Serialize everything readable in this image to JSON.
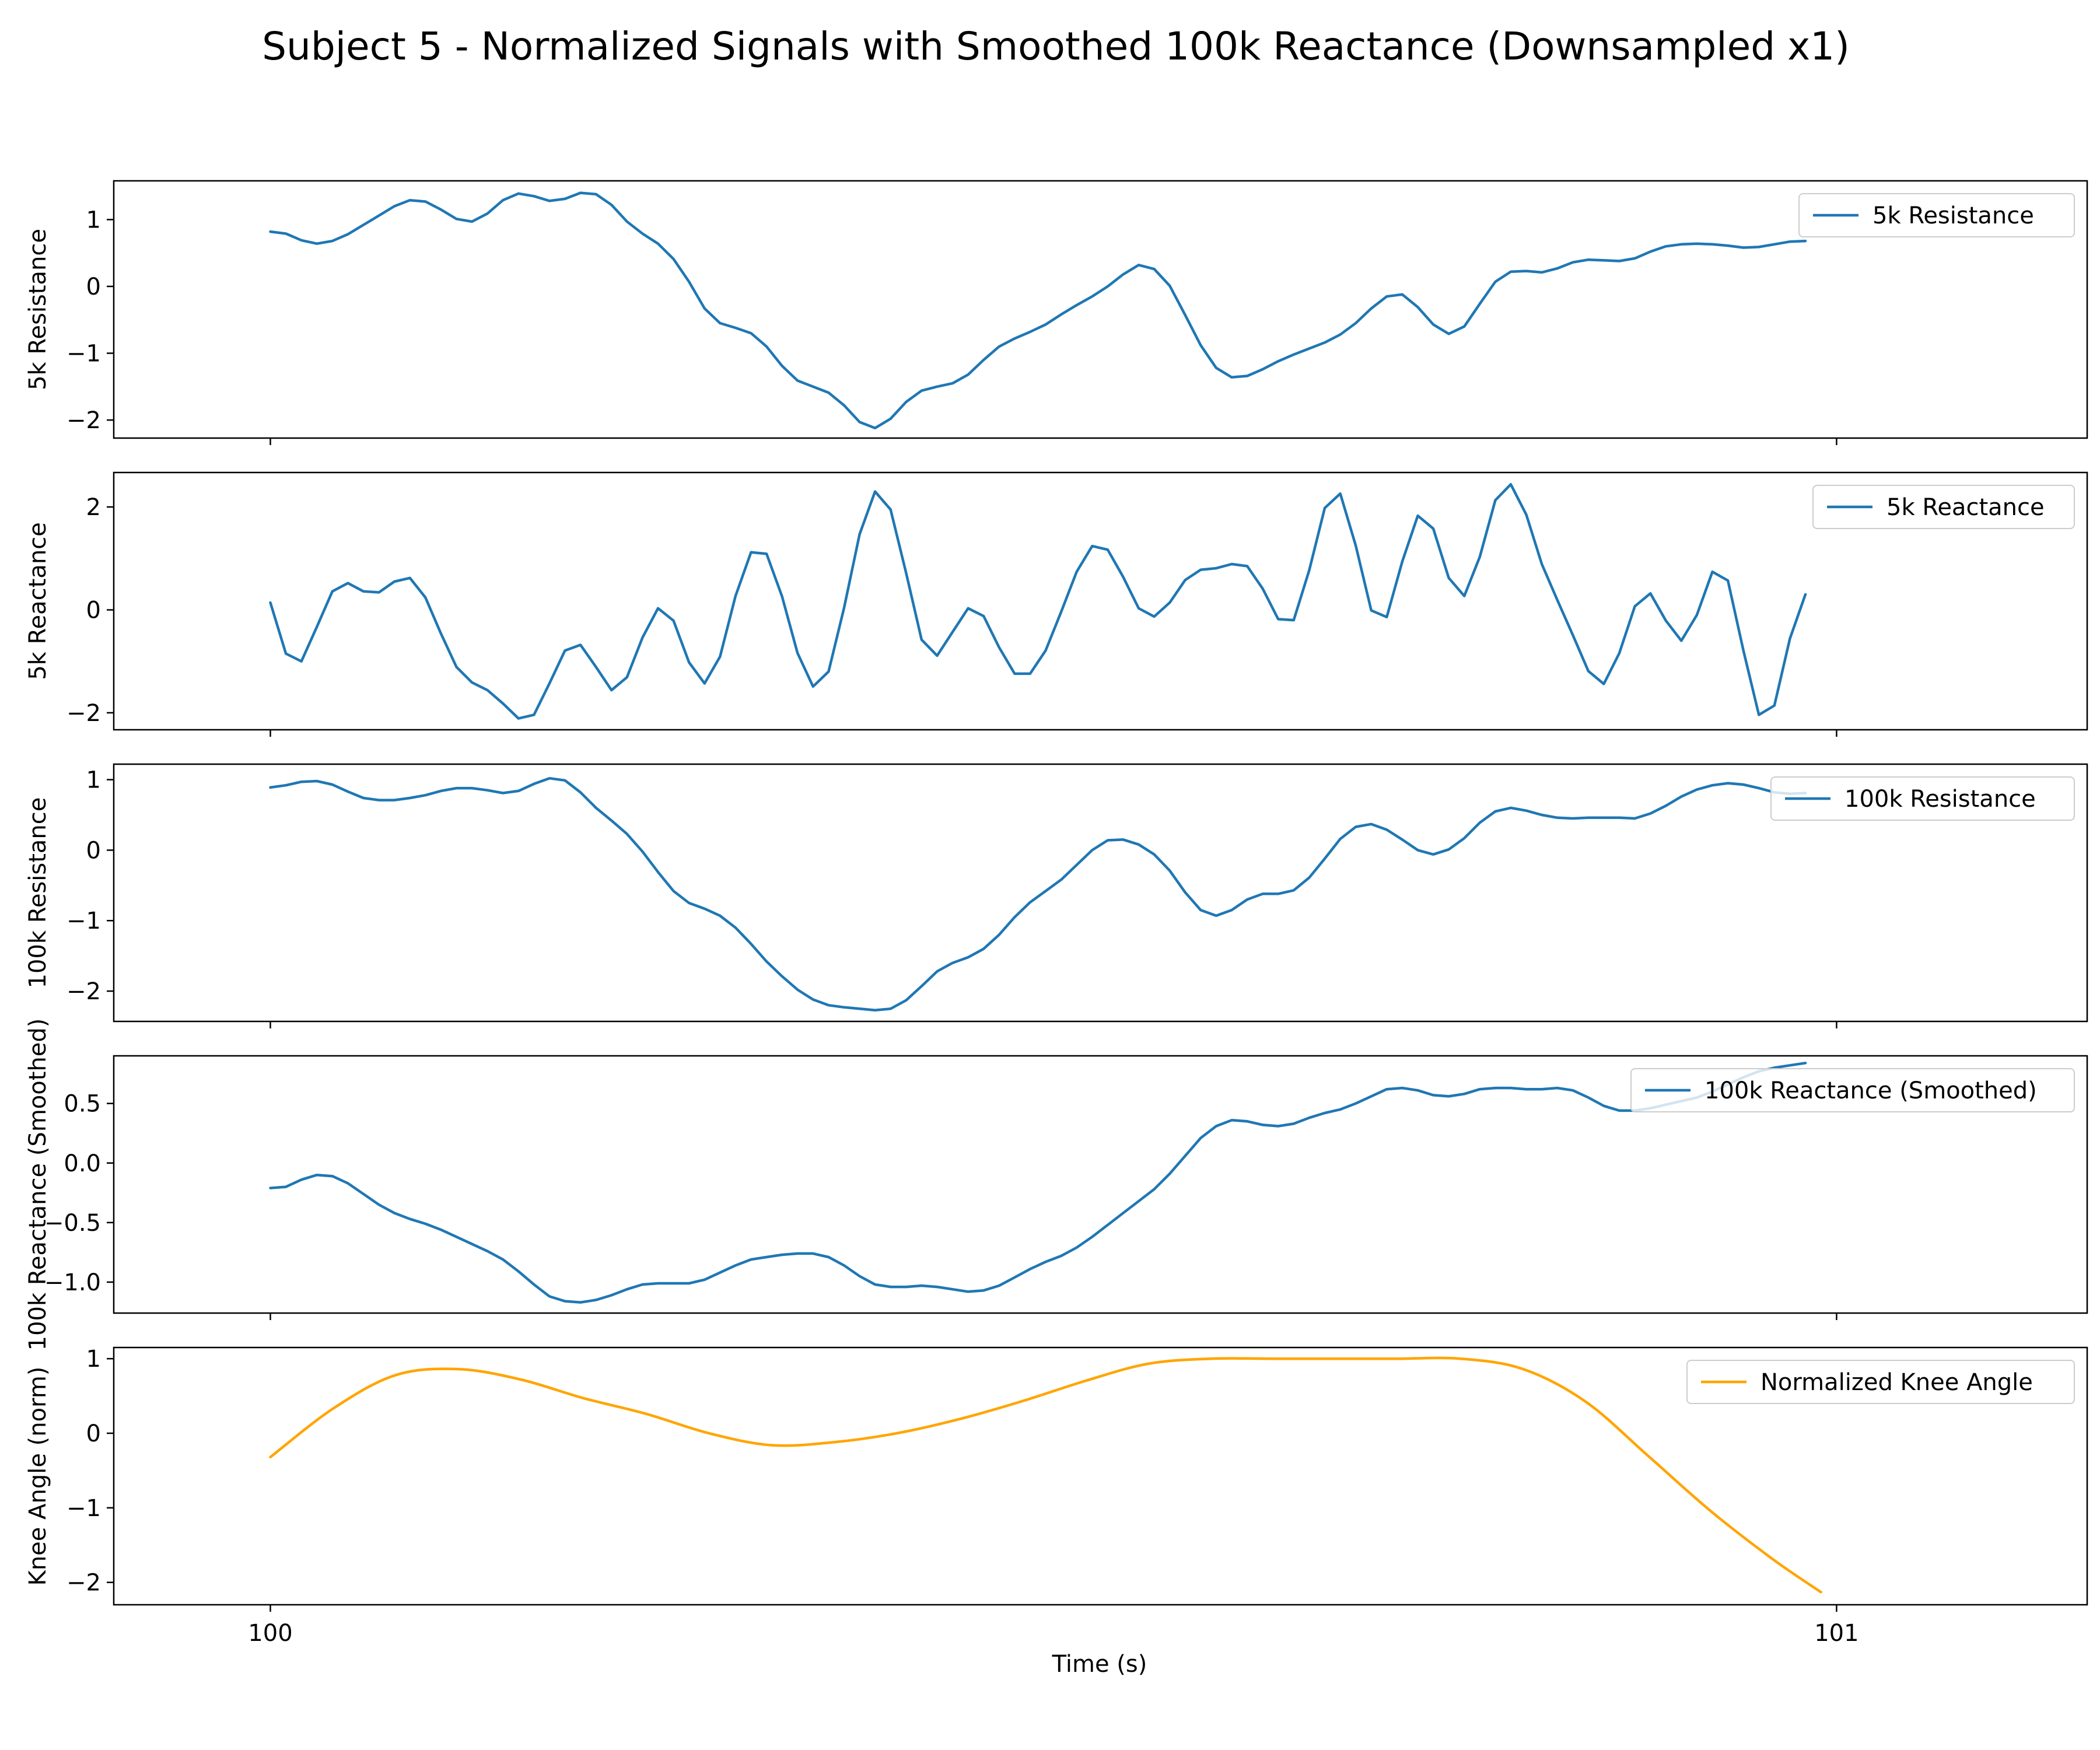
{
  "figure": {
    "title": "Subject 5 - Normalized Signals with Smoothed 100k Reactance (Downsampled x1)",
    "xlabel": "Time (s)"
  },
  "chart_data": [
    {
      "type": "line",
      "ylabel": "5k Resistance",
      "xlim": [
        99.9,
        101.16
      ],
      "ylim": [
        -2.27,
        1.58
      ],
      "xticks": [
        100,
        101
      ],
      "xticklabels": [
        "100",
        "101"
      ],
      "show_xticklabels": false,
      "yticks": [
        -2,
        -1,
        0,
        1
      ],
      "yticklabels": [
        "−2",
        "−1",
        "0",
        "1"
      ],
      "grid": false,
      "legend": "upper right",
      "series": [
        {
          "name": "5k Resistance",
          "color": "#1f77b4",
          "x_start": 100,
          "x_step": 0.0099,
          "values": [
            0.82,
            0.79,
            0.69,
            0.64,
            0.68,
            0.78,
            0.92,
            1.06,
            1.2,
            1.29,
            1.27,
            1.15,
            1.01,
            0.97,
            1.09,
            1.29,
            1.39,
            1.35,
            1.28,
            1.31,
            1.4,
            1.38,
            1.22,
            0.97,
            0.79,
            0.64,
            0.41,
            0.07,
            -0.33,
            -0.55,
            -0.62,
            -0.7,
            -0.9,
            -1.19,
            -1.41,
            -1.5,
            -1.59,
            -1.78,
            -2.03,
            -2.12,
            -1.98,
            -1.73,
            -1.56,
            -1.5,
            -1.45,
            -1.32,
            -1.1,
            -0.9,
            -0.78,
            -0.68,
            -0.57,
            -0.42,
            -0.28,
            -0.15,
            0.0,
            0.18,
            0.32,
            0.26,
            0.01,
            -0.43,
            -0.88,
            -1.22,
            -1.36,
            -1.34,
            -1.24,
            -1.12,
            -1.02,
            -0.93,
            -0.84,
            -0.72,
            -0.55,
            -0.33,
            -0.15,
            -0.12,
            -0.31,
            -0.57,
            -0.71,
            -0.6,
            -0.26,
            0.07,
            0.22,
            0.23,
            0.21,
            0.27,
            0.36,
            0.4,
            0.39,
            0.38,
            0.42,
            0.52,
            0.6,
            0.63,
            0.64,
            0.63,
            0.61,
            0.58,
            0.59,
            0.63,
            0.67,
            0.68
          ]
        }
      ]
    },
    {
      "type": "line",
      "ylabel": "5k Reactance",
      "xlim": [
        99.9,
        101.16
      ],
      "ylim": [
        -2.33,
        2.67
      ],
      "xticks": [
        100,
        101
      ],
      "xticklabels": [
        "100",
        "101"
      ],
      "show_xticklabels": false,
      "yticks": [
        -2,
        0,
        2
      ],
      "yticklabels": [
        "−2",
        "0",
        "2"
      ],
      "grid": false,
      "legend": "upper right",
      "series": [
        {
          "name": "5k Reactance",
          "color": "#1f77b4",
          "x_start": 100,
          "x_step": 0.0099,
          "values": [
            0.14,
            -0.85,
            -1.0,
            -0.33,
            0.36,
            0.52,
            0.36,
            0.34,
            0.55,
            0.62,
            0.24,
            -0.46,
            -1.11,
            -1.41,
            -1.56,
            -1.82,
            -2.11,
            -2.04,
            -1.43,
            -0.79,
            -0.68,
            -1.11,
            -1.56,
            -1.31,
            -0.54,
            0.03,
            -0.21,
            -1.02,
            -1.43,
            -0.91,
            0.27,
            1.12,
            1.09,
            0.26,
            -0.84,
            -1.49,
            -1.2,
            0.04,
            1.47,
            2.3,
            1.95,
            0.72,
            -0.58,
            -0.89,
            -0.43,
            0.03,
            -0.12,
            -0.73,
            -1.24,
            -1.24,
            -0.79,
            -0.04,
            0.74,
            1.24,
            1.17,
            0.64,
            0.03,
            -0.13,
            0.14,
            0.58,
            0.78,
            0.81,
            0.89,
            0.85,
            0.41,
            -0.18,
            -0.2,
            0.77,
            1.98,
            2.26,
            1.25,
            -0.01,
            -0.14,
            0.94,
            1.83,
            1.58,
            0.62,
            0.27,
            1.03,
            2.13,
            2.44,
            1.85,
            0.89,
            0.19,
            -0.49,
            -1.19,
            -1.44,
            -0.84,
            0.07,
            0.32,
            -0.21,
            -0.6,
            -0.1,
            0.74,
            0.57,
            -0.79,
            -2.04,
            -1.86,
            -0.56,
            0.3
          ]
        }
      ]
    },
    {
      "type": "line",
      "ylabel": "100k Resistance",
      "xlim": [
        99.9,
        101.16
      ],
      "ylim": [
        -2.43,
        1.22
      ],
      "xticks": [
        100,
        101
      ],
      "xticklabels": [
        "100",
        "101"
      ],
      "show_xticklabels": false,
      "yticks": [
        -2,
        -1,
        0,
        1
      ],
      "yticklabels": [
        "−2",
        "−1",
        "0",
        "1"
      ],
      "grid": false,
      "legend": "upper right",
      "series": [
        {
          "name": "100k Resistance",
          "color": "#1f77b4",
          "x_start": 100,
          "x_step": 0.0099,
          "values": [
            0.89,
            0.92,
            0.97,
            0.98,
            0.93,
            0.83,
            0.74,
            0.71,
            0.71,
            0.74,
            0.78,
            0.84,
            0.88,
            0.88,
            0.85,
            0.81,
            0.84,
            0.94,
            1.02,
            0.99,
            0.82,
            0.6,
            0.42,
            0.23,
            -0.02,
            -0.31,
            -0.58,
            -0.75,
            -0.83,
            -0.93,
            -1.1,
            -1.33,
            -1.58,
            -1.79,
            -1.98,
            -2.12,
            -2.2,
            -2.23,
            -2.25,
            -2.27,
            -2.25,
            -2.13,
            -1.93,
            -1.72,
            -1.6,
            -1.52,
            -1.4,
            -1.2,
            -0.95,
            -0.74,
            -0.58,
            -0.42,
            -0.21,
            0.0,
            0.14,
            0.15,
            0.08,
            -0.06,
            -0.29,
            -0.6,
            -0.85,
            -0.93,
            -0.85,
            -0.7,
            -0.62,
            -0.62,
            -0.57,
            -0.39,
            -0.12,
            0.16,
            0.33,
            0.37,
            0.29,
            0.15,
            0.0,
            -0.06,
            0.01,
            0.17,
            0.39,
            0.55,
            0.6,
            0.56,
            0.5,
            0.46,
            0.45,
            0.46,
            0.46,
            0.46,
            0.45,
            0.52,
            0.63,
            0.76,
            0.86,
            0.92,
            0.95,
            0.93,
            0.88,
            0.82,
            0.8,
            0.81
          ]
        }
      ]
    },
    {
      "type": "line",
      "ylabel": "100k Reactance (Smoothed)",
      "xlim": [
        99.9,
        101.16
      ],
      "ylim": [
        -1.26,
        0.9
      ],
      "xticks": [
        100,
        101
      ],
      "xticklabels": [
        "100",
        "101"
      ],
      "show_xticklabels": false,
      "yticks": [
        -1.0,
        -0.5,
        0.0,
        0.5
      ],
      "yticklabels": [
        "−1.0",
        "−0.5",
        "0.0",
        "0.5"
      ],
      "grid": false,
      "legend": "upper right",
      "series": [
        {
          "name": "100k Reactance (Smoothed)",
          "color": "#1f77b4",
          "x_start": 100,
          "x_step": 0.0099,
          "values": [
            -0.21,
            -0.2,
            -0.14,
            -0.1,
            -0.11,
            -0.17,
            -0.26,
            -0.35,
            -0.42,
            -0.47,
            -0.51,
            -0.56,
            -0.62,
            -0.68,
            -0.74,
            -0.81,
            -0.91,
            -1.02,
            -1.12,
            -1.16,
            -1.17,
            -1.15,
            -1.11,
            -1.06,
            -1.02,
            -1.01,
            -1.01,
            -1.01,
            -0.98,
            -0.92,
            -0.86,
            -0.81,
            -0.79,
            -0.77,
            -0.76,
            -0.76,
            -0.79,
            -0.86,
            -0.95,
            -1.02,
            -1.04,
            -1.04,
            -1.03,
            -1.04,
            -1.06,
            -1.08,
            -1.07,
            -1.03,
            -0.96,
            -0.89,
            -0.83,
            -0.78,
            -0.71,
            -0.62,
            -0.52,
            -0.42,
            -0.32,
            -0.22,
            -0.09,
            0.06,
            0.21,
            0.31,
            0.36,
            0.35,
            0.32,
            0.31,
            0.33,
            0.38,
            0.42,
            0.45,
            0.5,
            0.56,
            0.62,
            0.63,
            0.61,
            0.57,
            0.56,
            0.58,
            0.62,
            0.63,
            0.63,
            0.62,
            0.62,
            0.63,
            0.61,
            0.55,
            0.48,
            0.44,
            0.44,
            0.46,
            0.49,
            0.52,
            0.55,
            0.6,
            0.66,
            0.72,
            0.77,
            0.8,
            0.82,
            0.84
          ]
        }
      ]
    },
    {
      "type": "line",
      "ylabel": "Knee Angle (norm)",
      "xlim": [
        99.9,
        101.16
      ],
      "ylim": [
        -2.3,
        1.15
      ],
      "xticks": [
        100,
        101
      ],
      "xticklabels": [
        "100",
        "101"
      ],
      "show_xticklabels": true,
      "yticks": [
        -2,
        -1,
        0,
        1
      ],
      "yticklabels": [
        "−2",
        "−1",
        "0",
        "1"
      ],
      "grid": false,
      "legend": "upper right",
      "series": [
        {
          "name": "Normalized Knee Angle",
          "color": "#ffa500",
          "smooth": true,
          "x": [
            100.0,
            100.04,
            100.08,
            100.12,
            100.16,
            100.2,
            100.24,
            100.28,
            100.32,
            100.36,
            100.4,
            100.44,
            100.48,
            100.52,
            100.56,
            100.6,
            100.64,
            100.68,
            100.72,
            100.76,
            100.8,
            100.84,
            100.88,
            100.92,
            100.96,
            100.99
          ],
          "values": [
            -0.32,
            0.33,
            0.78,
            0.86,
            0.72,
            0.47,
            0.26,
            0.0,
            -0.16,
            -0.12,
            0.0,
            0.19,
            0.43,
            0.7,
            0.93,
            1.0,
            1.0,
            1.0,
            1.0,
            1.0,
            0.86,
            0.42,
            -0.31,
            -1.05,
            -1.7,
            -2.13
          ]
        }
      ]
    }
  ]
}
